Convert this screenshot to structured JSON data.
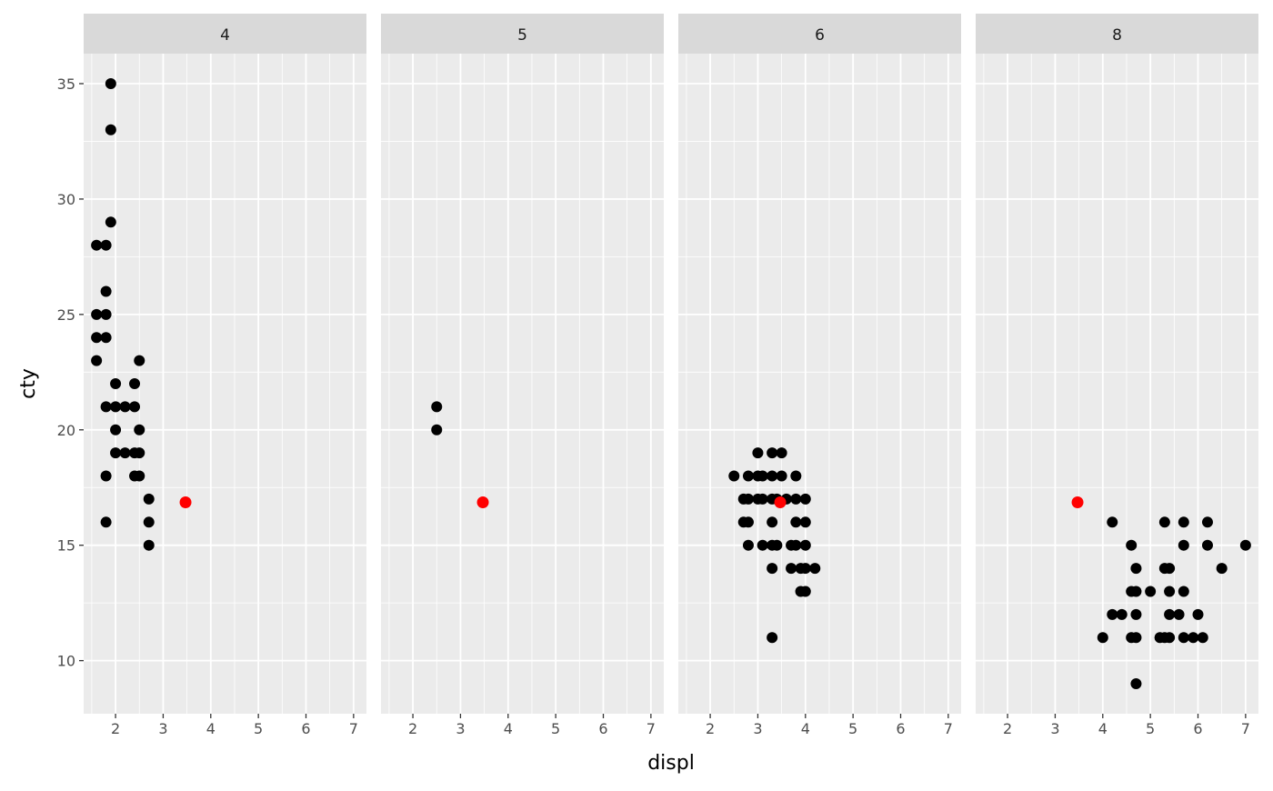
{
  "chart_data": {
    "type": "scatter",
    "facet_variable_values": [
      "4",
      "5",
      "6",
      "8"
    ],
    "xlabel": "displ",
    "ylabel": "cty",
    "xlim": [
      1.33,
      7.27
    ],
    "ylim": [
      7.7,
      36.3
    ],
    "x_ticks": [
      2,
      3,
      4,
      5,
      6,
      7
    ],
    "y_ticks": [
      10,
      15,
      20,
      25,
      30,
      35
    ],
    "grid": true,
    "colors": {
      "points": "#000000",
      "highlight": "#FF0000",
      "panel": "#EBEBEB",
      "strip": "#D9D9D9",
      "grid": "#FFFFFF"
    },
    "highlight_point": {
      "x": 3.47,
      "y": 16.86
    },
    "panels": [
      {
        "label": "4",
        "points": [
          [
            1.9,
            35
          ],
          [
            1.9,
            33
          ],
          [
            1.9,
            29
          ],
          [
            1.6,
            28
          ],
          [
            1.8,
            28
          ],
          [
            1.8,
            26
          ],
          [
            1.6,
            25
          ],
          [
            1.8,
            25
          ],
          [
            1.6,
            24
          ],
          [
            1.8,
            24
          ],
          [
            1.6,
            23
          ],
          [
            2.5,
            23
          ],
          [
            2.0,
            22
          ],
          [
            2.4,
            22
          ],
          [
            1.8,
            21
          ],
          [
            2.0,
            21
          ],
          [
            2.2,
            21
          ],
          [
            2.4,
            21
          ],
          [
            2.0,
            20
          ],
          [
            2.5,
            20
          ],
          [
            2.0,
            19
          ],
          [
            2.2,
            19
          ],
          [
            2.4,
            19
          ],
          [
            2.5,
            19
          ],
          [
            1.8,
            18
          ],
          [
            2.4,
            18
          ],
          [
            2.5,
            18
          ],
          [
            2.7,
            17
          ],
          [
            1.8,
            16
          ],
          [
            2.7,
            16
          ],
          [
            2.7,
            15
          ]
        ]
      },
      {
        "label": "5",
        "points": [
          [
            2.5,
            21
          ],
          [
            2.5,
            20
          ]
        ]
      },
      {
        "label": "6",
        "points": [
          [
            2.5,
            18
          ],
          [
            2.7,
            17
          ],
          [
            2.7,
            16
          ],
          [
            2.8,
            18
          ],
          [
            2.8,
            17
          ],
          [
            2.8,
            16
          ],
          [
            2.8,
            15
          ],
          [
            3.0,
            19
          ],
          [
            3.0,
            18
          ],
          [
            3.0,
            17
          ],
          [
            3.1,
            18
          ],
          [
            3.1,
            17
          ],
          [
            3.1,
            15
          ],
          [
            3.3,
            19
          ],
          [
            3.3,
            18
          ],
          [
            3.3,
            17
          ],
          [
            3.3,
            16
          ],
          [
            3.3,
            15
          ],
          [
            3.3,
            14
          ],
          [
            3.3,
            11
          ],
          [
            3.4,
            15
          ],
          [
            3.5,
            19
          ],
          [
            3.5,
            18
          ],
          [
            3.4,
            17
          ],
          [
            3.6,
            17
          ],
          [
            3.7,
            15
          ],
          [
            3.7,
            14
          ],
          [
            3.8,
            18
          ],
          [
            3.8,
            17
          ],
          [
            3.8,
            16
          ],
          [
            3.8,
            15
          ],
          [
            3.9,
            14
          ],
          [
            3.9,
            13
          ],
          [
            4.0,
            17
          ],
          [
            4.0,
            16
          ],
          [
            4.0,
            15
          ],
          [
            4.0,
            14
          ],
          [
            4.0,
            13
          ],
          [
            4.2,
            14
          ]
        ]
      },
      {
        "label": "8",
        "points": [
          [
            4.0,
            11
          ],
          [
            4.2,
            16
          ],
          [
            4.2,
            12
          ],
          [
            4.4,
            12
          ],
          [
            4.6,
            15
          ],
          [
            4.6,
            13
          ],
          [
            4.6,
            11
          ],
          [
            4.7,
            14
          ],
          [
            4.7,
            13
          ],
          [
            4.7,
            12
          ],
          [
            4.7,
            11
          ],
          [
            4.7,
            9
          ],
          [
            5.0,
            13
          ],
          [
            5.2,
            11
          ],
          [
            5.3,
            16
          ],
          [
            5.3,
            14
          ],
          [
            5.3,
            11
          ],
          [
            5.4,
            14
          ],
          [
            5.4,
            13
          ],
          [
            5.4,
            12
          ],
          [
            5.4,
            11
          ],
          [
            5.6,
            12
          ],
          [
            5.7,
            16
          ],
          [
            5.7,
            15
          ],
          [
            5.7,
            13
          ],
          [
            5.7,
            11
          ],
          [
            5.9,
            11
          ],
          [
            6.0,
            12
          ],
          [
            6.1,
            11
          ],
          [
            6.2,
            16
          ],
          [
            6.2,
            15
          ],
          [
            6.5,
            14
          ],
          [
            7.0,
            15
          ]
        ]
      }
    ]
  }
}
